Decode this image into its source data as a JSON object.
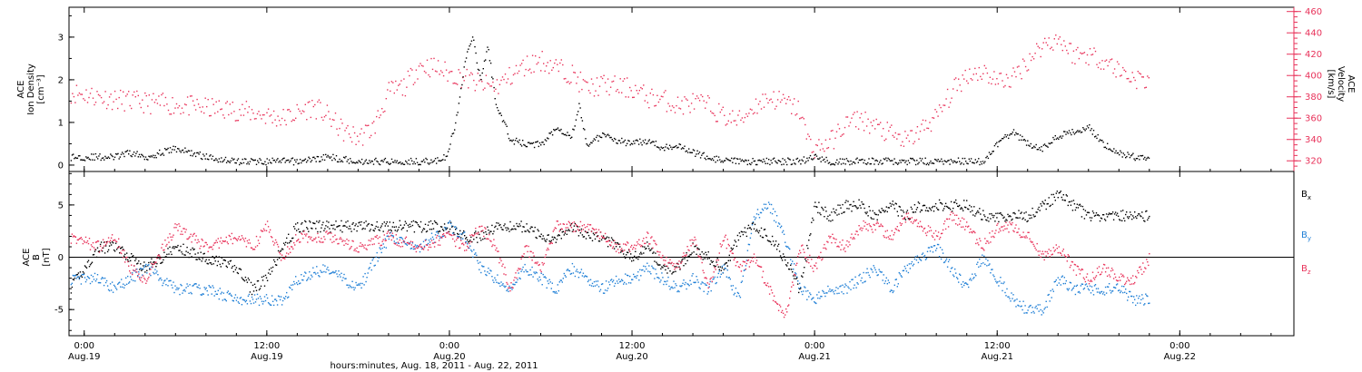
{
  "chart_data": [
    {
      "type": "scatter",
      "panel": "top",
      "title": "",
      "x_ticks": [
        {
          "t": 0,
          "line1": "0:00",
          "line2": "Aug.19"
        },
        {
          "t": 12,
          "line1": "12:00",
          "line2": "Aug.19"
        },
        {
          "t": 24,
          "line1": "0:00",
          "line2": "Aug.20"
        },
        {
          "t": 36,
          "line1": "12:00",
          "line2": "Aug.20"
        },
        {
          "t": 48,
          "line1": "0:00",
          "line2": "Aug.21"
        },
        {
          "t": 60,
          "line1": "12:00",
          "line2": "Aug.21"
        },
        {
          "t": 72,
          "line1": "0:00",
          "line2": "Aug.22"
        }
      ],
      "xlim": [
        -1,
        79.5
      ],
      "left_axis": {
        "label_lines": [
          "ACE",
          "Ion Density",
          "[cm⁻³]"
        ],
        "ylim": [
          -0.15,
          3.7
        ],
        "ticks": [
          "0",
          "1",
          "2",
          "3"
        ],
        "color": "#000000"
      },
      "right_axis": {
        "label_lines": [
          "ACE",
          "Velocity",
          "[km/s]"
        ],
        "ylim": [
          310,
          464
        ],
        "ticks": [
          "320",
          "340",
          "360",
          "380",
          "400",
          "420",
          "440",
          "460"
        ],
        "color": "#e8325a"
      },
      "series": [
        {
          "axis": "left",
          "color": "#000000",
          "t": [
            -1,
            2,
            3,
            4,
            6,
            8,
            10,
            12,
            14,
            16,
            18,
            19,
            20,
            21,
            22,
            23,
            23.8,
            24.5,
            25,
            25.5,
            26,
            26.5,
            27,
            28,
            29,
            30,
            31,
            32,
            32.5,
            33,
            34,
            35,
            36,
            37,
            38,
            39,
            40,
            41,
            42,
            43,
            44,
            45,
            46,
            47,
            48,
            49,
            50,
            51,
            52,
            53,
            54,
            55,
            56,
            57,
            58,
            59,
            60,
            61,
            62,
            63,
            64,
            65,
            66,
            67,
            68,
            69,
            70
          ],
          "values": [
            0.2,
            0.2,
            0.3,
            0.2,
            0.4,
            0.2,
            0.1,
            0.1,
            0.1,
            0.2,
            0.1,
            0.1,
            0.1,
            0.1,
            0.1,
            0.1,
            0.2,
            1.2,
            2.5,
            3.0,
            2.0,
            2.8,
            1.5,
            0.6,
            0.5,
            0.5,
            0.9,
            0.7,
            1.4,
            0.5,
            0.7,
            0.6,
            0.5,
            0.6,
            0.4,
            0.5,
            0.3,
            0.2,
            0.1,
            0.1,
            0.1,
            0.1,
            0.1,
            0.1,
            0.2,
            0.1,
            0.1,
            0.1,
            0.1,
            0.1,
            0.1,
            0.1,
            0.1,
            0.1,
            0.1,
            0.1,
            0.5,
            0.8,
            0.5,
            0.4,
            0.7,
            0.8,
            0.9,
            0.5,
            0.3,
            0.2,
            0.2
          ]
        },
        {
          "axis": "right",
          "color": "#e8325a",
          "t": [
            -1,
            0,
            2,
            4,
            6,
            8,
            10,
            12,
            13,
            14,
            15,
            16,
            17,
            18,
            19,
            20,
            21,
            22,
            23,
            24,
            25,
            26,
            27,
            28,
            29,
            30,
            31,
            32,
            33,
            34,
            35,
            36,
            37,
            38,
            39,
            40,
            41,
            42,
            43,
            44,
            45,
            46,
            47,
            47.5,
            48,
            49,
            50,
            51,
            52,
            53,
            54,
            55,
            56,
            57,
            58,
            59,
            60,
            61,
            62,
            63,
            64,
            65,
            66,
            67,
            68,
            69,
            70
          ],
          "values": [
            385,
            383,
            378,
            375,
            373,
            370,
            368,
            363,
            360,
            365,
            372,
            362,
            348,
            342,
            352,
            385,
            390,
            410,
            408,
            402,
            398,
            392,
            390,
            400,
            410,
            415,
            408,
            402,
            388,
            392,
            390,
            388,
            380,
            378,
            372,
            375,
            372,
            362,
            358,
            372,
            380,
            375,
            368,
            340,
            332,
            338,
            355,
            360,
            352,
            345,
            338,
            350,
            362,
            385,
            402,
            405,
            395,
            398,
            415,
            430,
            435,
            420,
            420,
            415,
            405,
            398,
            395
          ]
        }
      ]
    },
    {
      "type": "scatter",
      "panel": "bottom",
      "title": "",
      "xlabel": "hours:minutes, Aug. 18, 2011 - Aug. 22, 2011",
      "xlim": [
        -1,
        79.5
      ],
      "ylim": [
        -7.5,
        8.2
      ],
      "ylabel_lines": [
        "ACE",
        "B",
        "[nT]"
      ],
      "y_ticks": [
        "-5",
        "0",
        "5"
      ],
      "zero_line": true,
      "series": [
        {
          "name": "Bx",
          "color": "#000000",
          "t": [
            -1,
            1,
            2,
            3,
            4,
            6,
            8,
            10,
            11,
            12,
            13,
            14,
            16,
            18,
            19,
            20,
            22,
            24,
            25,
            26,
            27,
            28,
            29,
            30,
            31,
            32,
            33,
            34,
            35,
            36,
            37,
            38,
            39,
            40,
            41,
            42,
            43,
            44,
            45,
            46,
            47,
            48,
            49,
            50,
            51,
            52,
            53,
            54,
            55,
            56,
            57,
            58,
            59,
            60,
            61,
            62,
            63,
            64,
            65,
            66,
            67,
            68,
            69,
            70
          ],
          "values": [
            -3,
            1,
            1,
            0,
            -1,
            1,
            0,
            -1,
            -3,
            -2,
            1,
            3,
            3,
            3,
            3,
            3,
            3,
            3,
            2,
            2,
            3,
            3,
            3,
            2,
            2,
            3,
            2,
            2,
            1,
            0,
            1,
            -1,
            -1,
            1,
            0,
            -1,
            2,
            3,
            2,
            0,
            -3,
            5,
            4,
            5,
            5,
            4,
            5,
            4,
            5,
            5,
            5,
            5,
            4,
            4,
            4,
            4,
            5,
            6,
            5,
            4,
            4,
            4,
            4,
            4
          ]
        },
        {
          "name": "By",
          "color": "#1f7fd6",
          "t": [
            -1,
            1,
            2,
            3,
            4,
            6,
            8,
            10,
            11,
            12,
            13,
            14,
            16,
            18,
            20,
            22,
            24,
            25,
            26,
            27,
            28,
            29,
            30,
            31,
            32,
            33,
            34,
            35,
            36,
            37,
            38,
            39,
            40,
            41,
            42,
            43,
            44,
            45,
            46,
            47,
            48,
            49,
            50,
            51,
            52,
            53,
            54,
            55,
            56,
            57,
            58,
            59,
            60,
            61,
            62,
            63,
            64,
            65,
            66,
            67,
            68,
            69,
            70
          ],
          "values": [
            -2,
            -2,
            -3,
            -2,
            -1,
            -3,
            -3,
            -4,
            -4,
            -4,
            -4,
            -2,
            -1,
            -3,
            2,
            1,
            3,
            2,
            -1,
            -2,
            -3,
            -1,
            -2,
            -3,
            -1,
            -2,
            -3,
            -2,
            -2,
            -1,
            -2,
            -3,
            -2,
            -3,
            -1,
            -4,
            4,
            5,
            2,
            -3,
            -4,
            -3,
            -3,
            -2,
            -1,
            -3,
            -1,
            0,
            1,
            -1,
            -3,
            0,
            -2,
            -4,
            -5,
            -5,
            -2,
            -3,
            -3,
            -3,
            -3,
            -4,
            -4
          ]
        },
        {
          "name": "Bz",
          "color": "#e8325a",
          "t": [
            -1,
            1,
            2,
            3,
            4,
            6,
            8,
            10,
            11,
            12,
            13,
            14,
            16,
            18,
            20,
            22,
            24,
            25,
            26,
            27,
            28,
            29,
            30,
            31,
            32,
            33,
            34,
            35,
            36,
            37,
            38,
            39,
            40,
            41,
            42,
            43,
            44,
            45,
            46,
            47,
            48,
            49,
            50,
            51,
            52,
            53,
            54,
            55,
            56,
            57,
            58,
            59,
            60,
            61,
            62,
            63,
            64,
            65,
            66,
            67,
            68,
            69,
            70
          ],
          "values": [
            2,
            1,
            2,
            -1,
            -2,
            3,
            1,
            2,
            1,
            3,
            0,
            2,
            2,
            1,
            2,
            1,
            2,
            1,
            3,
            1,
            -3,
            1,
            -1,
            3,
            3,
            3,
            2,
            1,
            1,
            2,
            0,
            -1,
            2,
            -3,
            2,
            -1,
            0,
            -3,
            -6,
            1,
            -1,
            2,
            1,
            3,
            3,
            2,
            4,
            3,
            2,
            4,
            3,
            1,
            3,
            3,
            2,
            0,
            1,
            -1,
            -2,
            -1,
            -2,
            -2,
            0
          ]
        }
      ]
    }
  ],
  "legend": [
    {
      "base": "B",
      "sub": "x",
      "color": "#000000"
    },
    {
      "base": "B",
      "sub": "y",
      "color": "#1f7fd6"
    },
    {
      "base": "B",
      "sub": "z",
      "color": "#e8325a"
    }
  ]
}
